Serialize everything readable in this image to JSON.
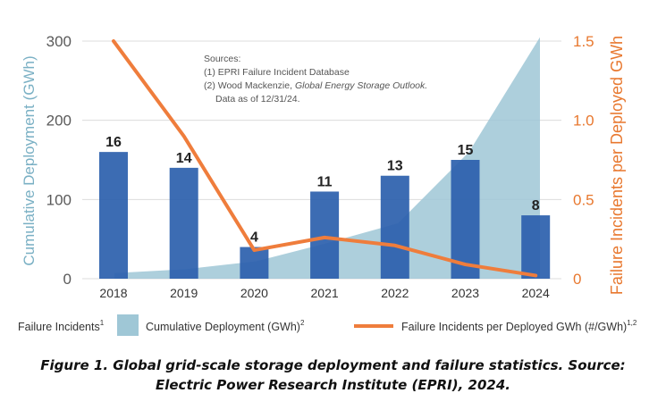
{
  "chart_data": {
    "type": "bar",
    "categories": [
      "2018",
      "2019",
      "2020",
      "2021",
      "2022",
      "2023",
      "2024"
    ],
    "series": [
      {
        "name": "Failure Incidents",
        "kind": "bar",
        "axis": "left",
        "color": "#2b5fad",
        "values": [
          16,
          14,
          4,
          11,
          13,
          15,
          8
        ],
        "bar_heights": [
          160,
          140,
          40,
          110,
          130,
          150,
          80
        ]
      },
      {
        "name": "Cumulative Deployment (GWh)",
        "kind": "area",
        "axis": "left",
        "color": "#9fc7d6",
        "values": [
          7,
          12,
          22,
          45,
          70,
          160,
          305
        ]
      },
      {
        "name": "Failure Incidents per Deployed GWh (#/GWh)",
        "kind": "line",
        "axis": "right",
        "color": "#ef7d3c",
        "values": [
          1.5,
          0.9,
          0.18,
          0.26,
          0.21,
          0.09,
          0.02
        ]
      }
    ],
    "left_axis": {
      "title": "Cumulative Deployment (GWh)",
      "ylim": [
        0,
        300
      ],
      "ticks": [
        "0",
        "100",
        "200",
        "300"
      ]
    },
    "right_axis": {
      "title": "Failure Incidents per Deployed GWh",
      "ylim": [
        0,
        1.5
      ],
      "ticks": [
        "0",
        "0.5",
        "1.0",
        "1.5"
      ]
    },
    "grid": true,
    "legend": {
      "placement": "bottom",
      "items": [
        {
          "label": "Failure Incidents",
          "sup": "1"
        },
        {
          "label": "Cumulative Deployment (GWh)",
          "sup": "2"
        },
        {
          "label": "Failure Incidents per Deployed GWh (#/GWh)",
          "sup": "1,2"
        }
      ]
    },
    "annotation": {
      "title": "Sources:",
      "line1": "(1) EPRI Failure Incident Database",
      "line2_prefix": "(2) Wood Mackenzie, ",
      "line2_italic": "Global Energy Storage Outlook.",
      "line3": "Data as of 12/31/24."
    }
  },
  "caption": {
    "line1": "Figure 1. Global grid-scale storage deployment and failure statistics. Source:",
    "line2": "Electric Power Research Institute (EPRI), 2024."
  }
}
